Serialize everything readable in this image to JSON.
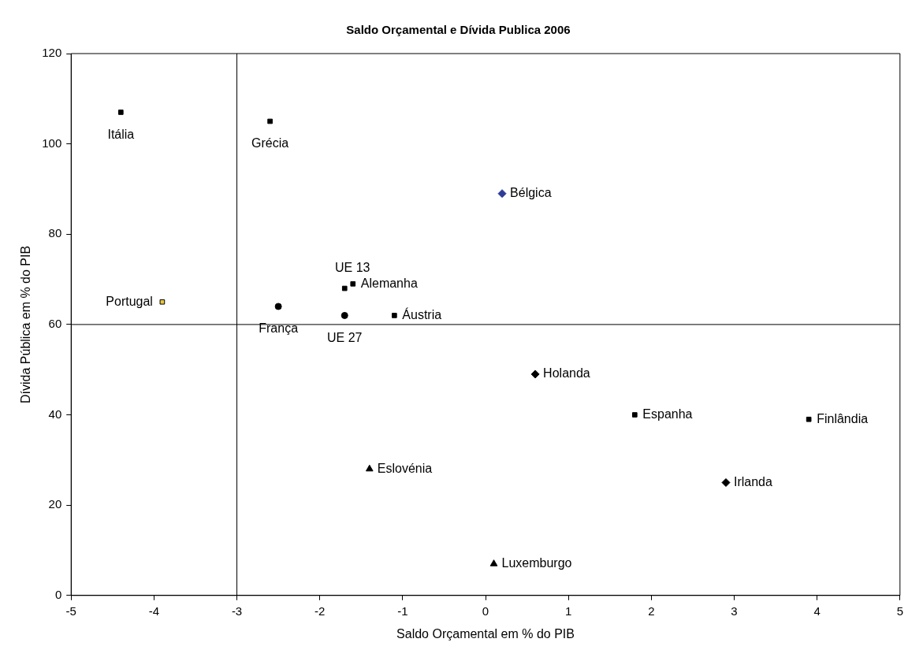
{
  "chart_data": {
    "type": "scatter",
    "title": "Saldo Orçamental e Dívida Publica 2006",
    "xlabel": "Saldo Orçamental em % do PIB",
    "ylabel": "Dívida Pública em % do PIB",
    "xlim": [
      -5,
      5
    ],
    "xticks": [
      -5,
      -4,
      -3,
      -2,
      -1,
      0,
      1,
      2,
      3,
      4,
      5
    ],
    "ylim": [
      0,
      120
    ],
    "yticks": [
      0,
      20,
      40,
      60,
      80,
      100,
      120
    ],
    "grid": false,
    "legend": false,
    "ref_lines": [
      {
        "axis": "x",
        "value": -3,
        "color": "#000000"
      },
      {
        "axis": "y",
        "value": 60,
        "color": "#000000"
      }
    ],
    "series": [
      {
        "name": "Itália",
        "color": "#000000",
        "marker": "square",
        "x": [
          -4.4
        ],
        "values": [
          107
        ]
      },
      {
        "name": "Grécia",
        "color": "#000000",
        "marker": "square",
        "x": [
          -2.6
        ],
        "values": [
          105
        ]
      },
      {
        "name": "Bélgica",
        "color": "#2e3c99",
        "marker": "diamond",
        "x": [
          0.2
        ],
        "values": [
          89
        ]
      },
      {
        "name": "Portugal",
        "color": "#e8c840",
        "marker": "square",
        "x": [
          -3.9
        ],
        "values": [
          65
        ]
      },
      {
        "name": "UE 13",
        "color": "#000000",
        "marker": "square",
        "x": [
          -1.7
        ],
        "values": [
          68
        ]
      },
      {
        "name": "Alemanha",
        "color": "#000000",
        "marker": "square",
        "x": [
          -1.6
        ],
        "values": [
          69
        ]
      },
      {
        "name": "França",
        "color": "#000000",
        "marker": "circle",
        "x": [
          -2.5
        ],
        "values": [
          64
        ]
      },
      {
        "name": "UE 27",
        "color": "#000000",
        "marker": "circle",
        "x": [
          -1.7
        ],
        "values": [
          62
        ]
      },
      {
        "name": "Áustria",
        "color": "#000000",
        "marker": "square",
        "x": [
          -1.1
        ],
        "values": [
          62
        ]
      },
      {
        "name": "Holanda",
        "color": "#000000",
        "marker": "diamond",
        "x": [
          0.6
        ],
        "values": [
          49
        ]
      },
      {
        "name": "Espanha",
        "color": "#000000",
        "marker": "square",
        "x": [
          1.8
        ],
        "values": [
          40
        ]
      },
      {
        "name": "Finlândia",
        "color": "#000000",
        "marker": "square",
        "x": [
          3.9
        ],
        "values": [
          39
        ]
      },
      {
        "name": "Eslovénia",
        "color": "#000000",
        "marker": "triangle",
        "x": [
          -1.4
        ],
        "values": [
          28
        ]
      },
      {
        "name": "Irlanda",
        "color": "#000000",
        "marker": "diamond",
        "x": [
          2.9
        ],
        "values": [
          25
        ]
      },
      {
        "name": "Luxemburgo",
        "color": "#000000",
        "marker": "triangle",
        "x": [
          0.1
        ],
        "values": [
          7
        ]
      }
    ]
  }
}
